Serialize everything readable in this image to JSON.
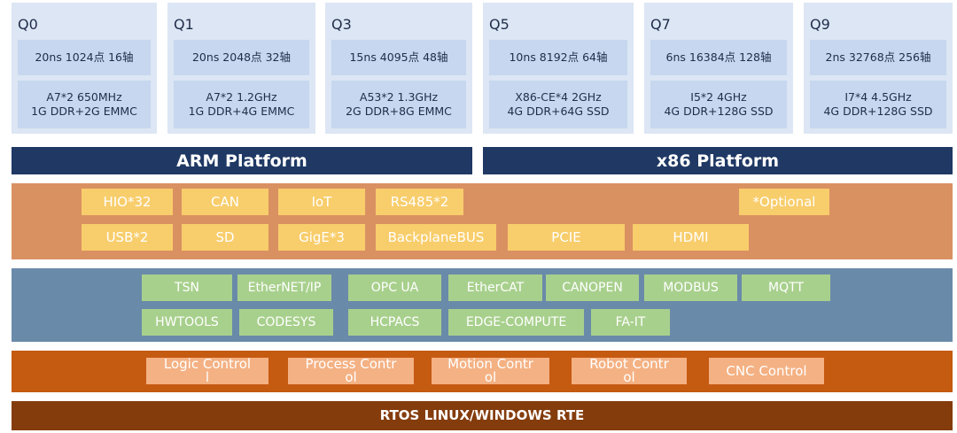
{
  "cards": [
    {
      "title": "Q0",
      "spec": "20ns 1024点 16轴",
      "hardware": [
        "A7*2 650MHz",
        "1G DDR+2G EMMC"
      ]
    },
    {
      "title": "Q1",
      "spec": "20ns 2048点 32轴",
      "hardware": [
        "A7*2 1.2GHz",
        "1G DDR+4G EMMC"
      ]
    },
    {
      "title": "Q3",
      "spec": "15ns 4095点 48轴",
      "hardware": [
        "A53*2 1.3GHz",
        "2G DDR+8G EMMC"
      ]
    },
    {
      "title": "Q5",
      "spec": "10ns 8192点 64轴",
      "hardware": [
        "X86-CE*4 2GHz",
        "4G DDR+64G SSD"
      ]
    },
    {
      "title": "Q7",
      "spec": "6ns 16384点 128轴",
      "hardware": [
        "I5*2 4GHz",
        "4G DDR+128G SSD"
      ]
    },
    {
      "title": "Q9",
      "spec": "2ns 32768点 256轴",
      "hardware": [
        "I7*4 4.5GHz",
        "4G DDR+128G SSD"
      ]
    }
  ],
  "platforms": [
    "ARM Platform",
    "x86 Platform"
  ],
  "interfaces": [
    "HIO*32",
    "CAN",
    "IoT",
    "RS485*2",
    "*Optional",
    "USB*2",
    "SD",
    "GigE*3",
    "BackplaneBUS",
    "PCIE",
    "HDMI"
  ],
  "protocols": [
    "TSN",
    "EtherNET/IP",
    "OPC UA",
    "EtherCAT",
    "CANOPEN",
    "MODBUS",
    "MQTT",
    "HWTOOLS",
    "CODESYS",
    "HCPACS",
    "EDGE-COMPUTE",
    "FA-IT"
  ],
  "applications": [
    "Logic Controll",
    "Process Control",
    "Motion Control",
    "Robot Control",
    "CNC Control"
  ],
  "runtime": "RTOS LINUX/WINDOWS RTE"
}
